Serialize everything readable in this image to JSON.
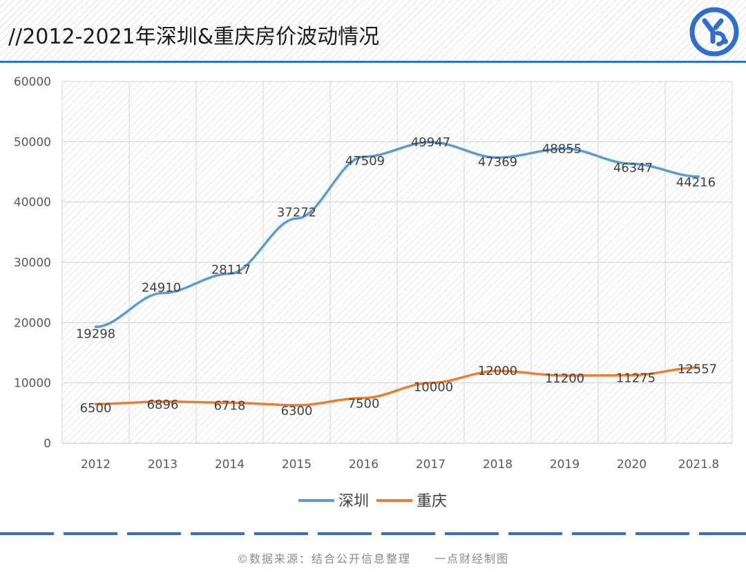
{
  "header": {
    "title": "//2012-2021年深圳&重庆房价波动情况"
  },
  "logo": {
    "name": "yd-logo-icon"
  },
  "colors": {
    "accent": "#2f6ed1",
    "shenzhen": "#5b9bd5",
    "chongqing": "#ed7d31"
  },
  "chart_data": {
    "type": "line",
    "title": "//2012-2021年深圳&重庆房价波动情况",
    "categories": [
      "2012",
      "2013",
      "2014",
      "2015",
      "2016",
      "2017",
      "2018",
      "2019",
      "2020",
      "2021.8"
    ],
    "series": [
      {
        "name": "深圳",
        "color": "#5b9bd5",
        "values": [
          19298,
          24910,
          28117,
          37272,
          47509,
          49947,
          47369,
          48855,
          46347,
          44216
        ]
      },
      {
        "name": "重庆",
        "color": "#ed7d31",
        "values": [
          6500,
          6896,
          6718,
          6300,
          7500,
          10000,
          12000,
          11200,
          11275,
          12557
        ]
      }
    ],
    "ylim": [
      0,
      60000
    ],
    "yticks": [
      0,
      10000,
      20000,
      30000,
      40000,
      50000,
      60000
    ],
    "grid": true,
    "legend": "bottom",
    "xlabel": "",
    "ylabel": ""
  },
  "footer": {
    "source": "©数据来源：结合公开信息整理",
    "credit": "一点财经制图"
  }
}
